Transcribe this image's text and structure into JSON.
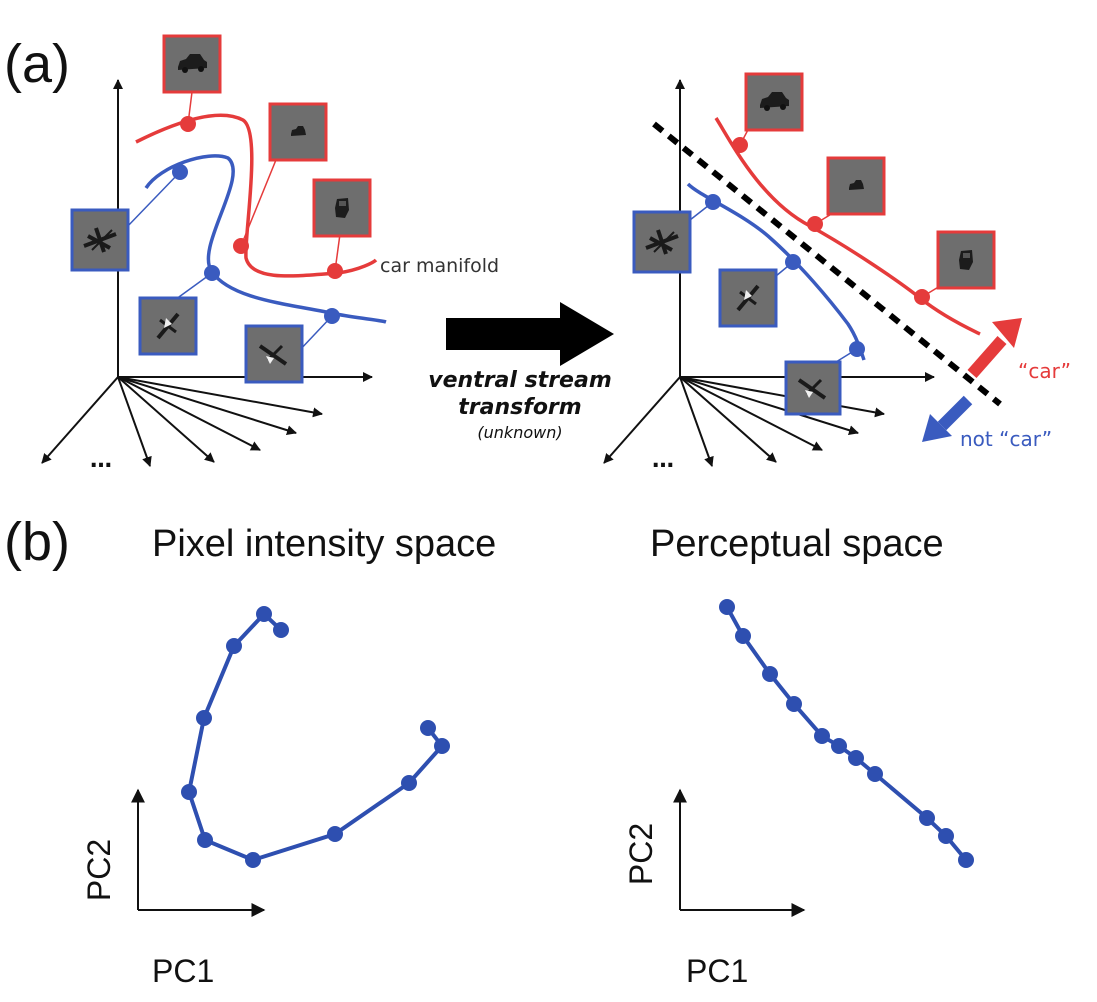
{
  "colors": {
    "car": "#e53b3b",
    "not_car": "#3a5bbf",
    "axis": "#111111",
    "thumbnail_bg": "#6e6e6e",
    "plot_line": "#2e4fb0"
  },
  "panel_a": {
    "label": "(a)",
    "manifold_label": "car manifold",
    "transform_label_line1": "ventral stream",
    "transform_label_line2": "transform",
    "transform_sub": "(unknown)",
    "class_positive": "“car”",
    "class_negative": "not “car”",
    "more_dims": "…",
    "icons": [
      "car-thumbnail",
      "plane-thumbnail"
    ]
  },
  "panel_b": {
    "label": "(b)",
    "left": {
      "title": "Pixel intensity space",
      "xlabel": "PC1",
      "ylabel": "PC2"
    },
    "right": {
      "title": "Perceptual space",
      "xlabel": "PC1",
      "ylabel": "PC2"
    }
  }
}
